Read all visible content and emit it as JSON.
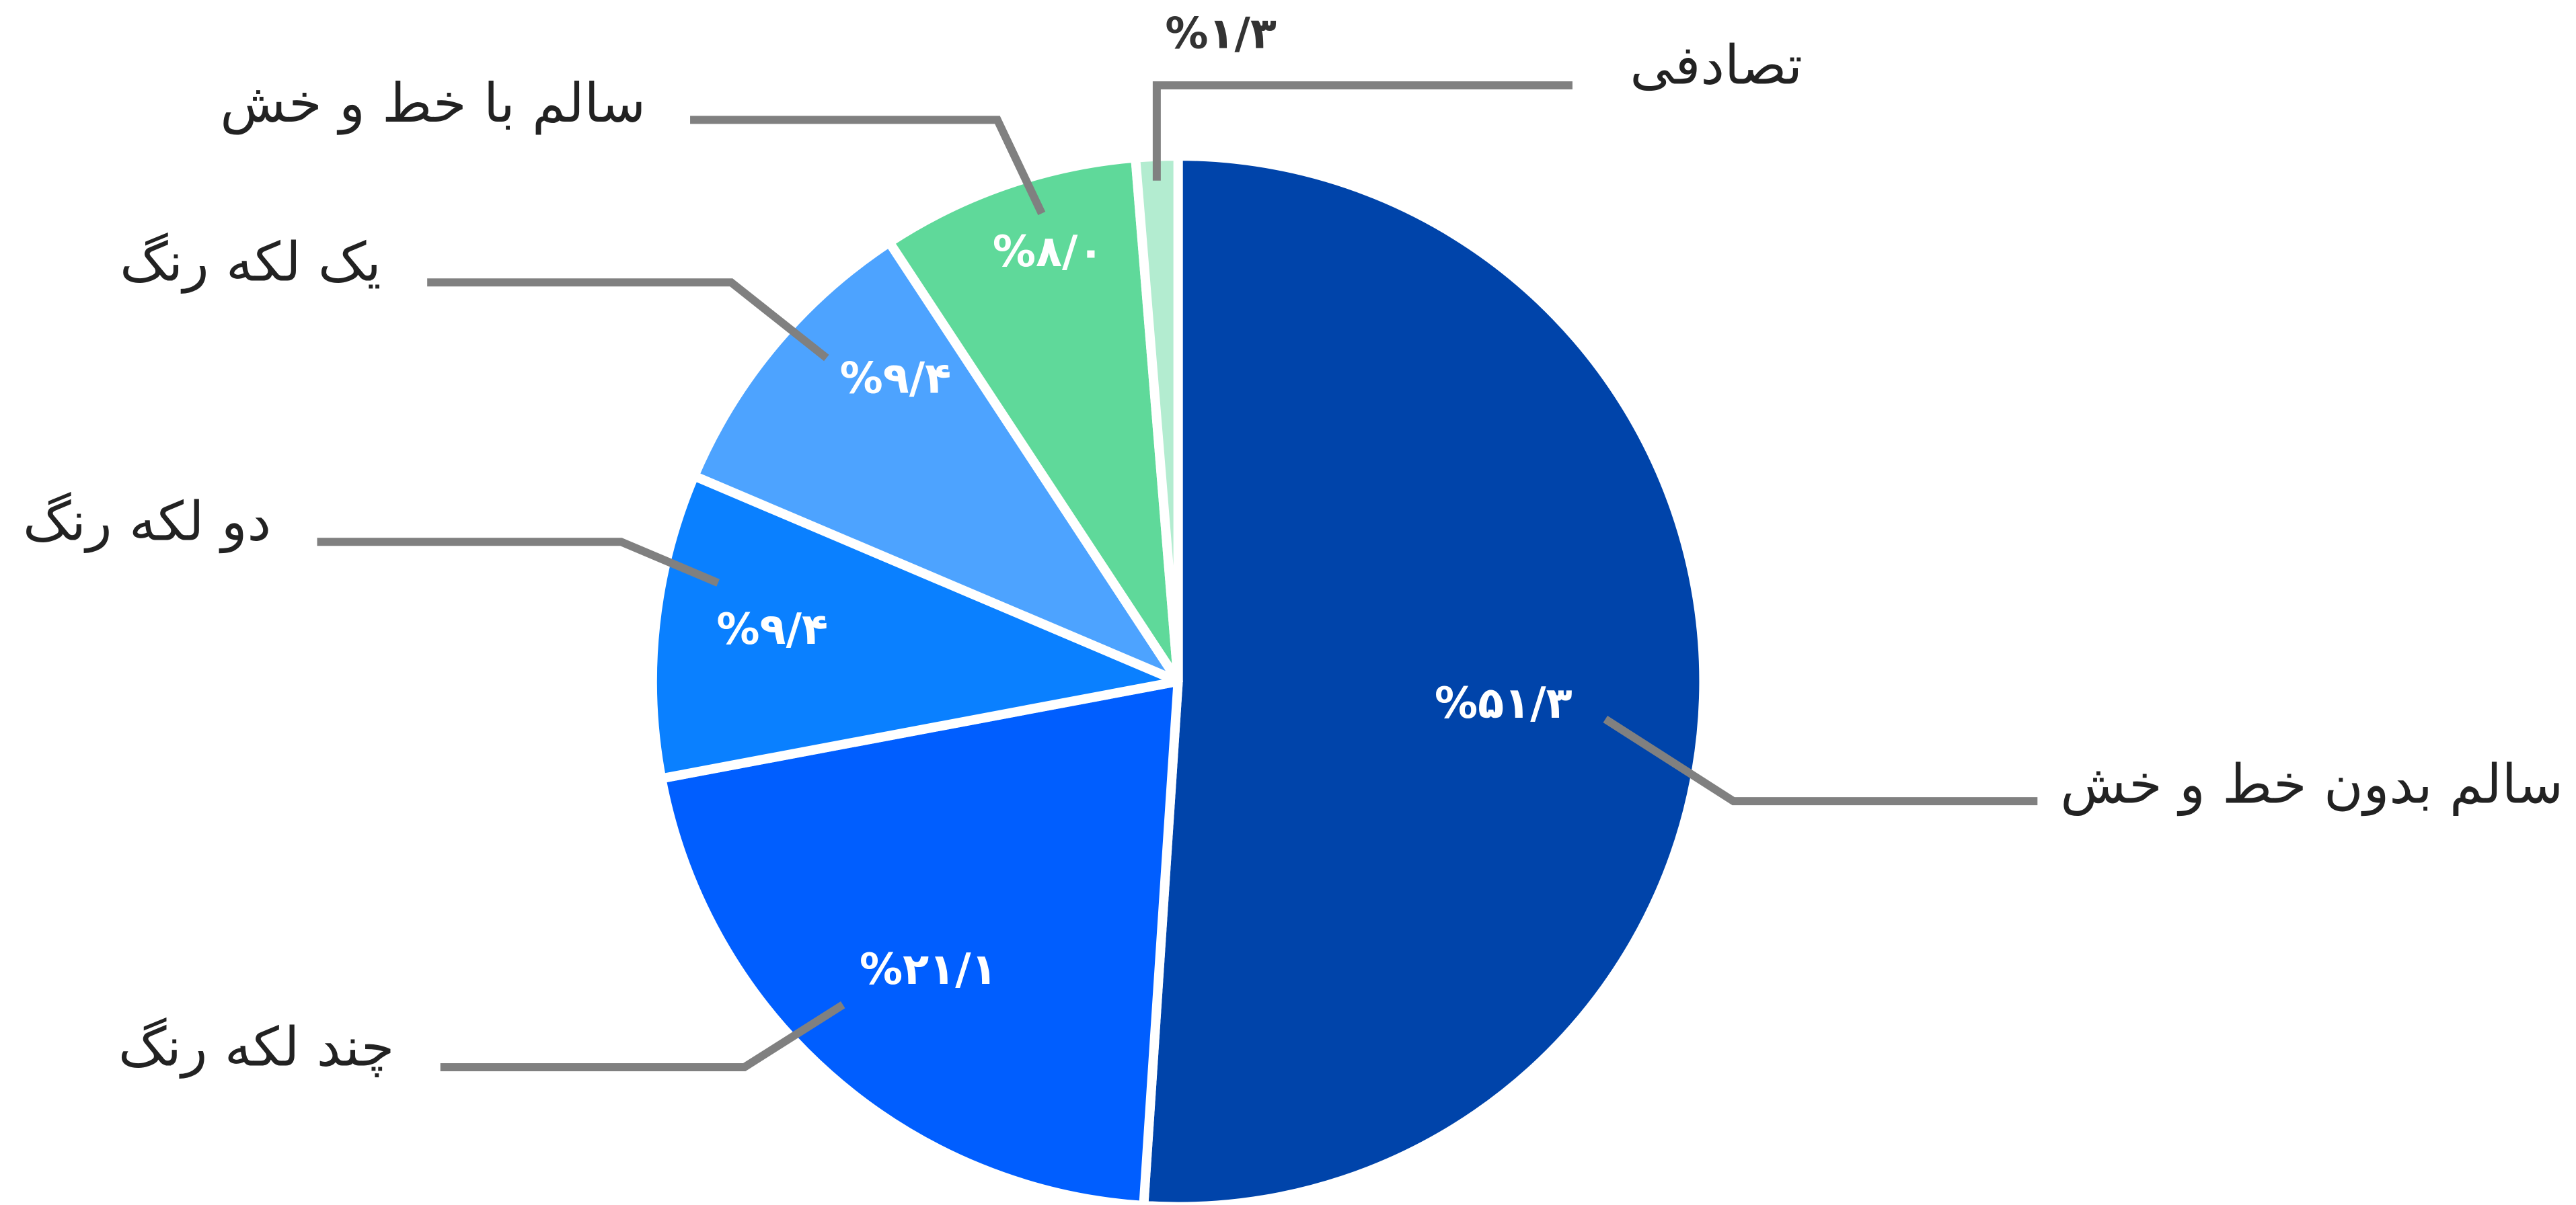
{
  "chart_data": {
    "type": "pie",
    "categories": [
      "سالم بدون خط و خش",
      "چند لکه رنگ",
      "دو لکه رنگ",
      "یک لکه رنگ",
      "سالم با خط و خش",
      "تصادفی"
    ],
    "values": [
      51.3,
      21.1,
      9.4,
      9.4,
      8.0,
      1.3
    ],
    "value_labels": [
      "%۵۱/۳",
      "%۲۱/۱",
      "%۹/۴",
      "%۹/۴",
      "%۸/۰",
      "%۱/۳"
    ],
    "colors": [
      "#0044aa",
      "#005eff",
      "#0a80ff",
      "#4da3ff",
      "#5fd99a",
      "#b3ecd0"
    ]
  }
}
